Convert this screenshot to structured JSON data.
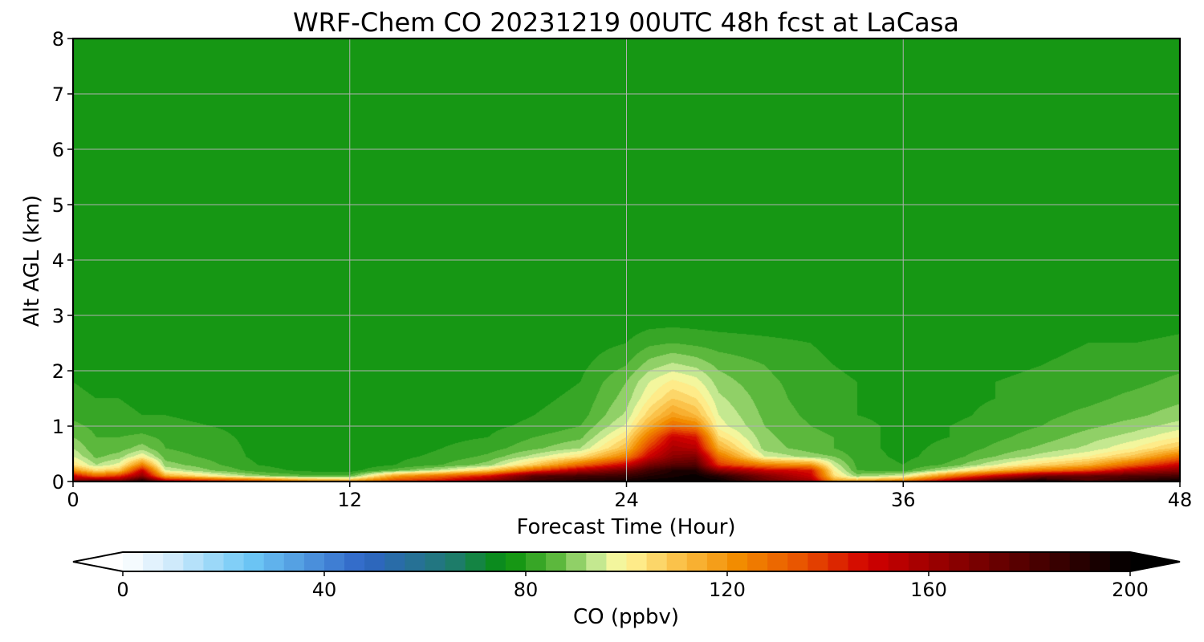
{
  "chart_data": {
    "type": "heatmap",
    "title": "WRF-Chem CO  20231219 00UTC 48h fcst at LaCasa",
    "xlabel": "Forecast Time (Hour)",
    "ylabel": "Alt AGL (km)",
    "xlim": [
      0,
      48
    ],
    "ylim": [
      0,
      8
    ],
    "x_ticks": [
      0,
      12,
      24,
      36,
      48
    ],
    "x_tick_labels": [
      "0",
      "12",
      "24",
      "36",
      "48"
    ],
    "y_ticks": [
      0,
      1,
      2,
      3,
      4,
      5,
      6,
      7,
      8
    ],
    "y_tick_labels": [
      "0",
      "1",
      "2",
      "3",
      "4",
      "5",
      "6",
      "7",
      "8"
    ],
    "grid": true,
    "colorbar": {
      "label": "CO  (ppbv)",
      "range": [
        0,
        200
      ],
      "ticks": [
        0,
        40,
        80,
        120,
        160,
        200
      ],
      "tick_labels": [
        "0",
        "40",
        "80",
        "120",
        "160",
        "200"
      ],
      "extend": "both",
      "orientation": "horizontal",
      "position": "bottom",
      "stops": [
        {
          "value": 0,
          "color": "#ffffff"
        },
        {
          "value": 10,
          "color": "#cfeafb"
        },
        {
          "value": 25,
          "color": "#6ec8f6"
        },
        {
          "value": 48,
          "color": "#2f64c6"
        },
        {
          "value": 65,
          "color": "#1f7a72"
        },
        {
          "value": 76,
          "color": "#068f0b"
        },
        {
          "value": 85,
          "color": "#4fb233"
        },
        {
          "value": 94,
          "color": "#c4e890"
        },
        {
          "value": 99,
          "color": "#fffaa0"
        },
        {
          "value": 110,
          "color": "#fbc24a"
        },
        {
          "value": 122,
          "color": "#f28c00"
        },
        {
          "value": 135,
          "color": "#e85200"
        },
        {
          "value": 148,
          "color": "#d10000"
        },
        {
          "value": 165,
          "color": "#8c0000"
        },
        {
          "value": 185,
          "color": "#3c0000"
        },
        {
          "value": 200,
          "color": "#000000"
        }
      ]
    },
    "colors": {
      "background_field": "#068f0b",
      "gridlines": "#b0b0b0",
      "frame": "#000000"
    },
    "hours": [
      0,
      1,
      2,
      3,
      4,
      6,
      8,
      10,
      12,
      14,
      16,
      18,
      20,
      22,
      24,
      25,
      26,
      27,
      28,
      30,
      32,
      33,
      34,
      36,
      38,
      40,
      42,
      44,
      46,
      48
    ],
    "levels_km": [
      0,
      0.1,
      0.2,
      0.3,
      0.45,
      0.6,
      0.8,
      1.0,
      1.2,
      1.5,
      1.8,
      2.1,
      2.5,
      3,
      3.5,
      4,
      5,
      6,
      7,
      8
    ],
    "co_ppbv": [
      [
        170,
        180,
        172,
        196,
        160,
        150,
        140,
        125,
        120,
        140,
        150,
        170,
        185,
        192,
        196,
        199,
        199,
        199,
        199,
        175,
        160,
        120,
        118,
        130,
        160,
        190,
        200,
        180,
        190,
        200
      ],
      [
        150,
        130,
        140,
        165,
        115,
        100,
        90,
        85,
        85,
        118,
        130,
        145,
        178,
        183,
        186,
        192,
        195,
        198,
        190,
        168,
        150,
        105,
        90,
        96,
        125,
        150,
        170,
        175,
        180,
        182
      ],
      [
        120,
        105,
        110,
        150,
        96,
        88,
        82,
        79,
        78,
        86,
        95,
        108,
        135,
        156,
        172,
        184,
        192,
        192,
        165,
        150,
        145,
        100,
        84,
        82,
        95,
        112,
        126,
        135,
        155,
        165
      ],
      [
        104,
        92,
        98,
        125,
        90,
        85,
        80,
        78,
        77,
        80,
        84,
        90,
        108,
        130,
        150,
        170,
        178,
        180,
        140,
        125,
        120,
        95,
        83,
        80,
        85,
        96,
        106,
        114,
        132,
        150
      ],
      [
        96,
        87,
        90,
        100,
        86,
        83,
        79,
        78,
        77,
        79,
        81,
        85,
        94,
        104,
        125,
        150,
        165,
        168,
        128,
        96,
        90,
        88,
        82,
        79,
        82,
        88,
        94,
        100,
        110,
        128
      ],
      [
        92,
        85,
        86,
        90,
        84,
        82,
        79,
        78,
        77,
        78,
        80,
        82,
        87,
        92,
        112,
        140,
        158,
        155,
        115,
        90,
        86,
        84,
        81,
        79,
        81,
        85,
        89,
        93,
        100,
        110
      ],
      [
        88,
        84,
        84,
        85,
        83,
        81,
        79,
        78,
        77,
        78,
        79,
        80,
        84,
        87,
        104,
        128,
        150,
        145,
        105,
        89,
        85,
        84,
        81,
        79,
        80,
        83,
        86,
        90,
        94,
        100
      ],
      [
        85,
        83,
        82,
        82,
        81,
        80,
        79,
        78,
        77,
        77,
        78,
        79,
        81,
        84,
        97,
        115,
        130,
        125,
        98,
        88,
        84,
        83,
        81,
        79,
        80,
        82,
        84,
        87,
        90,
        94
      ],
      [
        83,
        82,
        81,
        80,
        80,
        79,
        78,
        77,
        77,
        77,
        77,
        78,
        80,
        82,
        93,
        107,
        118,
        112,
        96,
        87,
        83,
        82,
        80,
        79,
        79,
        81,
        83,
        85,
        87,
        90
      ],
      [
        81,
        80,
        80,
        79,
        79,
        78,
        78,
        77,
        77,
        77,
        77,
        78,
        79,
        81,
        90,
        100,
        108,
        104,
        93,
        86,
        82,
        81,
        80,
        79,
        79,
        80,
        82,
        83,
        85,
        87
      ],
      [
        80,
        79,
        79,
        79,
        78,
        78,
        77,
        77,
        77,
        77,
        77,
        77,
        78,
        80,
        88,
        96,
        101,
        98,
        90,
        85,
        82,
        81,
        80,
        79,
        79,
        80,
        81,
        82,
        83,
        85
      ],
      [
        79,
        78,
        78,
        78,
        78,
        77,
        77,
        77,
        77,
        77,
        77,
        77,
        78,
        79,
        84,
        90,
        93,
        91,
        87,
        84,
        81,
        80,
        79,
        79,
        79,
        79,
        80,
        81,
        82,
        83
      ],
      [
        78,
        78,
        78,
        77,
        77,
        77,
        77,
        77,
        76,
        76,
        77,
        77,
        77,
        78,
        80,
        83,
        84,
        83,
        82,
        81,
        80,
        79,
        79,
        78,
        78,
        79,
        79,
        80,
        80,
        81
      ],
      [
        77,
        77,
        77,
        77,
        77,
        77,
        76,
        76,
        76,
        76,
        76,
        76,
        76,
        77,
        77,
        77,
        77,
        77,
        77,
        77,
        77,
        77,
        77,
        77,
        76,
        76,
        76,
        77,
        77,
        78
      ],
      [
        77,
        76,
        76,
        77,
        77,
        76,
        76,
        76,
        76,
        76,
        76,
        76,
        76,
        76,
        76,
        76,
        76,
        76,
        76,
        76,
        76,
        76,
        76,
        76,
        76,
        76,
        76,
        76,
        77,
        77
      ],
      [
        77,
        77,
        77,
        77,
        77,
        77,
        77,
        76,
        76,
        76,
        76,
        76,
        76,
        76,
        76,
        76,
        76,
        76,
        76,
        76,
        76,
        76,
        76,
        76,
        76,
        76,
        76,
        77,
        77,
        77
      ],
      [
        77,
        77,
        77,
        77,
        77,
        77,
        77,
        77,
        77,
        77,
        77,
        77,
        77,
        77,
        77,
        77,
        77,
        77,
        77,
        77,
        77,
        77,
        77,
        77,
        76,
        77,
        77,
        77,
        77,
        77
      ],
      [
        77,
        77,
        77,
        77,
        77,
        77,
        77,
        77,
        77,
        77,
        77,
        77,
        77,
        77,
        77,
        77,
        77,
        77,
        77,
        77,
        77,
        77,
        77,
        77,
        77,
        77,
        77,
        77,
        77,
        77
      ],
      [
        77,
        77,
        77,
        77,
        77,
        77,
        77,
        77,
        77,
        77,
        77,
        77,
        78,
        77,
        77,
        77,
        77,
        77,
        77,
        77,
        77,
        77,
        77,
        77,
        77,
        77,
        77,
        77,
        77,
        77
      ],
      [
        77,
        77,
        77,
        77,
        77,
        77,
        77,
        77,
        77,
        77,
        77,
        77,
        77,
        77,
        77,
        77,
        77,
        77,
        77,
        77,
        77,
        77,
        77,
        77,
        77,
        76,
        76,
        77,
        77,
        77
      ]
    ]
  }
}
